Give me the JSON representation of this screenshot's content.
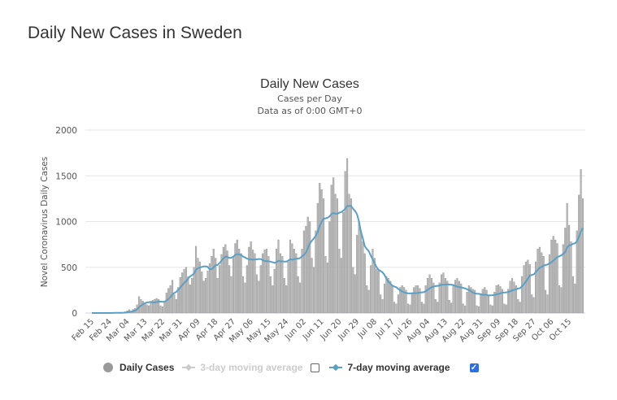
{
  "page_title": "Daily New Cases in Sweden",
  "chart_data": {
    "type": "bar",
    "title": "Daily New Cases",
    "subtitle": "Cases per Day",
    "subtitle2": "Data as of 0:00 GMT+0",
    "ylabel": "Novel Coronavirus Daily Cases",
    "xlabel": "",
    "ylim": [
      0,
      2000
    ],
    "y_ticks": [
      "0",
      "500",
      "1000",
      "1500",
      "2000"
    ],
    "grid": true,
    "x_tick_labels": [
      "Feb 15",
      "Feb 24",
      "Mar 04",
      "Mar 13",
      "Mar 22",
      "Mar 31",
      "Apr 09",
      "Apr 18",
      "Apr 27",
      "May 06",
      "May 15",
      "May 24",
      "Jun 02",
      "Jun 11",
      "Jun 20",
      "Jun 29",
      "Jul 08",
      "Jul 17",
      "Jul 26",
      "Aug 04",
      "Aug 13",
      "Aug 22",
      "Aug 31",
      "Sep 09",
      "Sep 18",
      "Sep 27",
      "Oct 06",
      "Oct 15"
    ],
    "x_tick_interval_days": 9,
    "legend_position": "bottom",
    "series": [
      {
        "name": "Daily Cases",
        "type": "bar",
        "color": "#a9a9a9",
        "visible": true,
        "values": [
          0,
          0,
          0,
          0,
          0,
          0,
          0,
          0,
          0,
          1,
          2,
          3,
          5,
          2,
          2,
          1,
          7,
          14,
          24,
          37,
          20,
          40,
          50,
          90,
          180,
          150,
          130,
          110,
          90,
          80,
          110,
          140,
          150,
          160,
          150,
          80,
          70,
          120,
          220,
          270,
          300,
          360,
          200,
          150,
          280,
          390,
          440,
          480,
          500,
          400,
          310,
          380,
          500,
          730,
          600,
          560,
          450,
          350,
          380,
          460,
          540,
          620,
          700,
          600,
          380,
          520,
          640,
          720,
          750,
          680,
          520,
          400,
          610,
          760,
          800,
          700,
          650,
          400,
          330,
          520,
          720,
          780,
          690,
          650,
          420,
          350,
          520,
          650,
          690,
          700,
          620,
          400,
          300,
          480,
          700,
          800,
          650,
          620,
          380,
          300,
          560,
          800,
          760,
          700,
          650,
          400,
          330,
          700,
          900,
          950,
          1050,
          1000,
          600,
          500,
          900,
          1200,
          1420,
          1350,
          1250,
          620,
          550,
          1000,
          1400,
          1480,
          1300,
          1250,
          700,
          600,
          1100,
          1550,
          1690,
          1300,
          1250,
          500,
          420,
          850,
          1000,
          900,
          780,
          650,
          300,
          250,
          520,
          700,
          600,
          480,
          460,
          200,
          150,
          320,
          400,
          380,
          350,
          300,
          120,
          100,
          200,
          280,
          300,
          280,
          250,
          100,
          90,
          220,
          280,
          300,
          300,
          270,
          120,
          100,
          300,
          380,
          420,
          380,
          330,
          150,
          120,
          330,
          420,
          440,
          380,
          350,
          140,
          110,
          300,
          360,
          380,
          350,
          320,
          100,
          80,
          230,
          300,
          280,
          260,
          250,
          80,
          70,
          200,
          260,
          280,
          250,
          200,
          90,
          80,
          230,
          300,
          310,
          290,
          260,
          100,
          90,
          260,
          350,
          380,
          340,
          300,
          150,
          120,
          400,
          520,
          560,
          580,
          530,
          200,
          170,
          560,
          700,
          720,
          660,
          620,
          250,
          200,
          640,
          800,
          840,
          800,
          760,
          300,
          280,
          750,
          930,
          1200,
          960,
          780,
          400,
          320,
          900,
          1290,
          1570,
          1250
        ]
      },
      {
        "name": "3-day moving average",
        "type": "line",
        "color": "#cccccc",
        "visible": false
      },
      {
        "name": "7-day moving average",
        "type": "line",
        "color": "#5b9fc6",
        "visible": true
      }
    ]
  },
  "legend": {
    "daily": "Daily Cases",
    "ma3": "3-day moving average",
    "ma3_checked": false,
    "ma7": "7-day moving average",
    "ma7_checked": true
  }
}
